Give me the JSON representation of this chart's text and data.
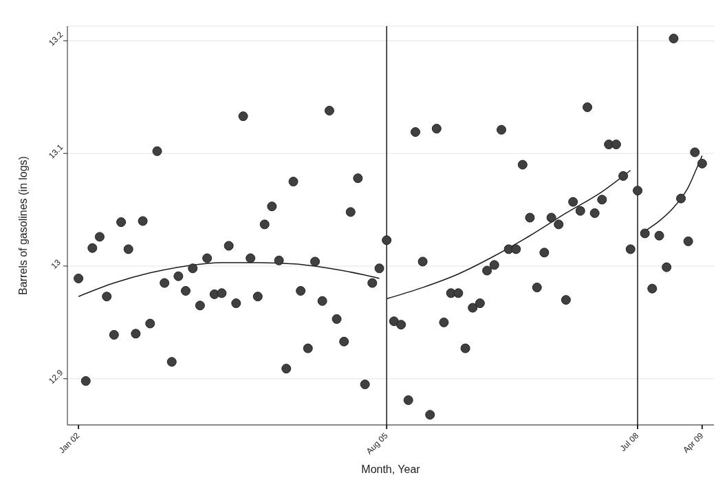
{
  "chart_data": {
    "type": "scatter",
    "xlabel": "Month, Year",
    "ylabel": "Barrels of gasolines (in logs)",
    "xlim": [
      "2001-11-15",
      "2009-05-21"
    ],
    "xticks": [
      {
        "value": "2002-01",
        "label": "Jan 02"
      },
      {
        "value": "2005-08",
        "label": "Aug 05"
      },
      {
        "value": "2008-07",
        "label": "Jul 08"
      },
      {
        "value": "2009-04",
        "label": "Apr 09"
      }
    ],
    "ylim": [
      12.859,
      13.213
    ],
    "yticks": [
      12.9,
      13,
      13.1,
      13.2
    ],
    "grid": "y",
    "line_style": "solid",
    "ref_lines": [
      {
        "axis": "x",
        "value": "2005-08",
        "color": "#1a1a1a"
      },
      {
        "axis": "x",
        "value": "2008-07",
        "color": "#1a1a1a"
      }
    ],
    "series": [
      {
        "marker": "circle",
        "color": "#404040",
        "x": [
          "2002-01",
          "2002-02",
          "2002-03",
          "2002-04",
          "2002-05",
          "2002-06",
          "2002-07",
          "2002-08",
          "2002-09",
          "2002-10",
          "2002-11",
          "2002-12",
          "2003-01",
          "2003-02",
          "2003-03",
          "2003-04",
          "2003-05",
          "2003-06",
          "2003-07",
          "2003-08",
          "2003-09",
          "2003-10",
          "2003-11",
          "2003-12",
          "2004-01",
          "2004-02",
          "2004-03",
          "2004-04",
          "2004-05",
          "2004-06",
          "2004-07",
          "2004-08",
          "2004-09",
          "2004-10",
          "2004-11",
          "2004-12",
          "2005-01",
          "2005-02",
          "2005-03",
          "2005-04",
          "2005-05",
          "2005-06",
          "2005-07",
          "2005-08",
          "2005-09",
          "2005-10",
          "2005-11",
          "2005-12",
          "2006-01",
          "2006-02",
          "2006-03",
          "2006-04",
          "2006-05",
          "2006-06",
          "2006-07",
          "2006-08",
          "2006-09",
          "2006-10",
          "2006-11",
          "2006-12",
          "2007-01",
          "2007-02",
          "2007-03",
          "2007-04",
          "2007-05",
          "2007-06",
          "2007-07",
          "2007-08",
          "2007-09",
          "2007-10",
          "2007-11",
          "2007-12",
          "2008-01",
          "2008-02",
          "2008-03",
          "2008-04",
          "2008-05",
          "2008-06",
          "2008-07",
          "2008-08",
          "2008-09",
          "2008-10",
          "2008-11",
          "2008-12",
          "2009-01",
          "2009-02",
          "2009-03",
          "2009-04"
        ],
        "values": [
          12.989,
          12.898,
          13.016,
          13.026,
          12.973,
          12.939,
          13.039,
          13.015,
          12.94,
          13.04,
          12.949,
          13.102,
          12.985,
          12.915,
          12.991,
          12.978,
          12.998,
          12.965,
          13.007,
          12.975,
          12.976,
          13.018,
          12.967,
          13.133,
          13.007,
          12.973,
          13.037,
          13.053,
          13.005,
          12.909,
          13.075,
          12.978,
          12.927,
          13.004,
          12.969,
          13.138,
          12.953,
          12.933,
          13.048,
          13.078,
          12.895,
          12.985,
          12.998,
          13.023,
          12.951,
          12.948,
          12.881,
          13.119,
          13.004,
          12.868,
          13.122,
          12.95,
          12.976,
          12.976,
          12.927,
          12.963,
          12.967,
          12.996,
          13.001,
          13.121,
          13.015,
          13.015,
          13.09,
          13.043,
          12.981,
          13.012,
          13.043,
          13.037,
          12.97,
          13.057,
          13.049,
          13.141,
          13.047,
          13.059,
          13.108,
          13.108,
          13.08,
          13.015,
          13.067,
          13.029,
          12.98,
          13.027,
          12.999,
          13.202,
          13.06,
          13.022,
          13.101,
          13.091
        ]
      },
      {
        "type": "line",
        "marker": "none",
        "color": "#1a1a1a",
        "x": [
          "2002-01",
          "2002-06",
          "2002-11",
          "2003-04",
          "2003-09",
          "2004-02",
          "2004-07",
          "2004-12",
          "2005-05",
          "2005-07"
        ],
        "values": [
          12.973,
          12.985,
          12.994,
          13.0,
          13.003,
          13.003,
          13.002,
          12.998,
          12.992,
          12.989
        ]
      },
      {
        "type": "line",
        "marker": "none",
        "color": "#1a1a1a",
        "x": [
          "2005-08",
          "2006-01",
          "2006-06",
          "2006-11",
          "2007-04",
          "2007-09",
          "2008-02",
          "2008-06"
        ],
        "values": [
          12.971,
          12.981,
          12.993,
          13.009,
          13.027,
          13.047,
          13.066,
          13.085
        ]
      },
      {
        "type": "line",
        "marker": "none",
        "color": "#1a1a1a",
        "x": [
          "2008-08",
          "2008-10",
          "2008-12",
          "2009-01",
          "2009-02",
          "2009-03",
          "2009-04"
        ],
        "values": [
          13.031,
          13.04,
          13.052,
          13.06,
          13.07,
          13.083,
          13.098
        ]
      }
    ]
  }
}
